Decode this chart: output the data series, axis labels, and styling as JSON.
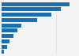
{
  "values": [
    62628,
    55000,
    46000,
    33000,
    18000,
    14500,
    11000,
    7500,
    5200,
    2300
  ],
  "bar_color": "#1a6faf",
  "background_color": "#f4f4f4",
  "grid_color": "#dddddd",
  "xlim": [
    0,
    70000
  ]
}
